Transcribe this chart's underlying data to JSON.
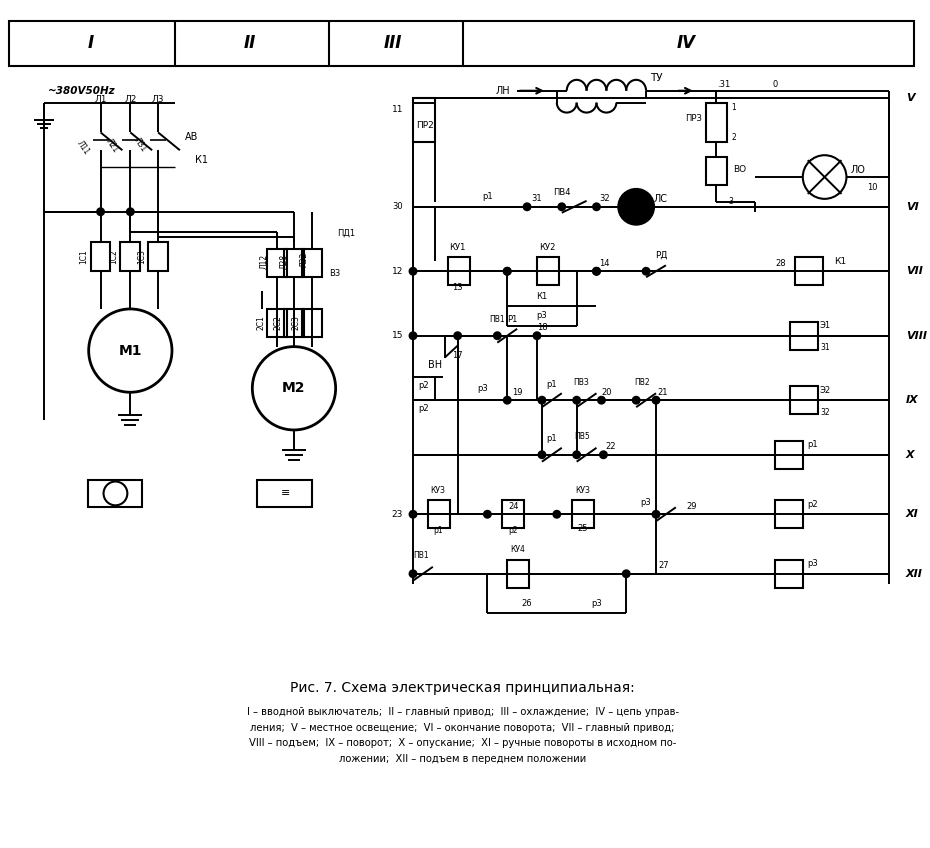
{
  "bg_color": "#ffffff",
  "fig_width": 9.3,
  "fig_height": 8.48,
  "dpi": 100,
  "title": "Рис. 7. Схема электрическая принципиальная:",
  "cap1": "I – вводной выключатель;  II – главный привод;  III – охлаждение;  IV – цепь управ-",
  "cap2": "ления;  V – местное освещение;  VI – окончание поворота;  VII – главный привод;",
  "cap3": "VIII – подъем;  IX – поворот;  X – опускание;  XI – ручные повороты в исходном по-",
  "cap4": "ложении;  XII – подъем в переднем положении"
}
